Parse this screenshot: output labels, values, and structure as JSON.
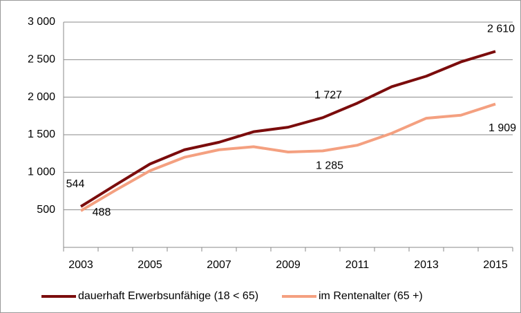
{
  "chart_data": {
    "type": "line",
    "categories": [
      "2003",
      null,
      "2005",
      null,
      "2007",
      null,
      "2009",
      null,
      "2011",
      null,
      "2013",
      null,
      "2015"
    ],
    "series": [
      {
        "name": "dauerhaft Erwerbsunfähige (18 < 65)",
        "color": "#7b0c0c",
        "values": [
          544,
          830,
          1110,
          1300,
          1400,
          1540,
          1600,
          1727,
          1920,
          2140,
          2280,
          2470,
          2610
        ],
        "value_labels": [
          "544",
          null,
          null,
          null,
          null,
          null,
          null,
          "1 727",
          null,
          null,
          null,
          null,
          "2 610"
        ]
      },
      {
        "name": "im Rentenalter (65 +)",
        "color": "#f4a080",
        "values": [
          488,
          760,
          1020,
          1200,
          1300,
          1340,
          1270,
          1285,
          1360,
          1520,
          1720,
          1760,
          1909
        ],
        "value_labels": [
          "488",
          null,
          null,
          null,
          null,
          null,
          null,
          "1 285",
          null,
          null,
          null,
          null,
          "1 909"
        ]
      }
    ],
    "ylim": [
      0,
      3000
    ],
    "yticks": [
      500,
      {
        "value": 1000,
        "label": "1 000"
      },
      {
        "value": 1500,
        "label": "1 500"
      },
      {
        "value": 2000,
        "label": "2 000"
      },
      {
        "value": 2500,
        "label": "2 500"
      },
      {
        "value": 3000,
        "label": "3 000"
      }
    ],
    "grid": true,
    "legend": "bottom"
  }
}
